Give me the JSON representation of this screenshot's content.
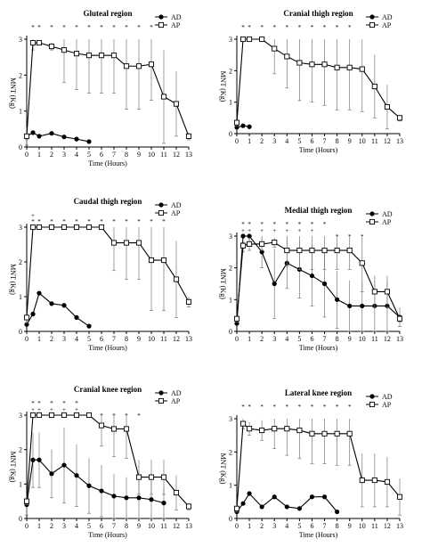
{
  "chart_data": [
    {
      "type": "line",
      "title": "Gluteal region",
      "xlabel": "Time (Hours)",
      "ylabel": "MNT (Kg)",
      "xlim": [
        0,
        13
      ],
      "ylim": [
        0,
        3
      ],
      "xticks": [
        0,
        1,
        2,
        3,
        4,
        5,
        6,
        7,
        8,
        9,
        10,
        11,
        12,
        13
      ],
      "yticks": [
        0,
        1,
        2,
        3
      ],
      "legend_position": "top-right",
      "annotation_rows": [
        {
          "text": "*",
          "x": [
            0.5,
            1,
            2,
            3,
            4,
            5,
            6,
            7,
            8,
            9,
            10
          ]
        }
      ],
      "series": [
        {
          "name": "AD",
          "marker": "filled-circle",
          "x": [
            0,
            0.5,
            1,
            2,
            3,
            4,
            5
          ],
          "y": [
            0.3,
            0.4,
            0.3,
            0.38,
            0.28,
            0.22,
            0.15
          ],
          "err": [
            0.1,
            0,
            0,
            0,
            0,
            0,
            0
          ]
        },
        {
          "name": "AP",
          "marker": "open-square",
          "x": [
            0,
            0.5,
            1,
            2,
            3,
            4,
            5,
            6,
            7,
            8,
            9,
            10,
            11,
            12,
            13
          ],
          "y": [
            0.3,
            2.9,
            2.9,
            2.8,
            2.7,
            2.6,
            2.55,
            2.55,
            2.55,
            2.25,
            2.25,
            2.3,
            1.4,
            1.2,
            0.3
          ],
          "err": [
            0.25,
            0.2,
            0,
            0.1,
            0.9,
            1.0,
            1.05,
            1.05,
            1.05,
            1.2,
            1.2,
            1.0,
            1.3,
            0.9,
            0.1
          ]
        }
      ]
    },
    {
      "type": "line",
      "title": "Cranial thigh region",
      "xlabel": "Time (Hours)",
      "ylabel": "MNT (Kg)",
      "xlim": [
        0,
        13
      ],
      "ylim": [
        0,
        3
      ],
      "xticks": [
        0,
        1,
        2,
        3,
        4,
        5,
        6,
        7,
        8,
        9,
        10,
        11,
        12,
        13
      ],
      "yticks": [
        0,
        1,
        2,
        3
      ],
      "legend_position": "top-right",
      "annotation_rows": [
        {
          "text": "*",
          "x": [
            0.5,
            1,
            2,
            3,
            4,
            5,
            6,
            7,
            8,
            9
          ]
        }
      ],
      "series": [
        {
          "name": "AD",
          "marker": "filled-circle",
          "x": [
            0,
            0.5,
            1
          ],
          "y": [
            0.2,
            0.25,
            0.22
          ],
          "err": [
            0,
            0,
            0
          ]
        },
        {
          "name": "AP",
          "marker": "open-square",
          "x": [
            0,
            0.5,
            1,
            2,
            3,
            4,
            5,
            6,
            7,
            8,
            9,
            10,
            11,
            12,
            13
          ],
          "y": [
            0.35,
            3.0,
            3.0,
            3.0,
            2.7,
            2.45,
            2.25,
            2.2,
            2.2,
            2.1,
            2.1,
            2.05,
            1.5,
            0.85,
            0.5
          ],
          "err": [
            0.1,
            0,
            0,
            0,
            0.8,
            1.0,
            1.2,
            1.2,
            1.3,
            1.35,
            1.35,
            1.35,
            1.0,
            0.7,
            0.1
          ]
        }
      ]
    },
    {
      "type": "line",
      "title": "Caudal thigh region",
      "xlabel": "Time (Hours)",
      "ylabel": "MNT (Kg)",
      "xlim": [
        0,
        13
      ],
      "ylim": [
        0,
        3
      ],
      "xticks": [
        0,
        1,
        2,
        3,
        4,
        5,
        6,
        7,
        8,
        9,
        10,
        11,
        12,
        13
      ],
      "yticks": [
        0,
        1,
        2,
        3
      ],
      "legend_position": "top-right",
      "annotation_rows": [
        {
          "text": "+",
          "x": [
            0.5
          ]
        },
        {
          "text": "*",
          "x": [
            0.5,
            1,
            2,
            3,
            4,
            5,
            6,
            7,
            8,
            9,
            10,
            11
          ]
        }
      ],
      "series": [
        {
          "name": "AD",
          "marker": "filled-circle",
          "x": [
            0,
            0.5,
            1,
            2,
            3,
            4,
            5
          ],
          "y": [
            0.2,
            0.5,
            1.1,
            0.8,
            0.75,
            0.4,
            0.15
          ],
          "err": [
            0,
            0,
            0,
            0,
            0,
            0,
            0
          ]
        },
        {
          "name": "AP",
          "marker": "open-square",
          "x": [
            0,
            0.5,
            1,
            2,
            3,
            4,
            5,
            6,
            7,
            8,
            9,
            10,
            11,
            12,
            13
          ],
          "y": [
            0.4,
            3.0,
            3.0,
            3.0,
            3.0,
            3.0,
            3.0,
            3.0,
            2.55,
            2.55,
            2.55,
            2.05,
            2.05,
            1.5,
            0.85
          ],
          "err": [
            0.15,
            0,
            0,
            0,
            0,
            0,
            0,
            0,
            0.8,
            1.05,
            1.05,
            1.45,
            1.45,
            1.1,
            0.15
          ]
        }
      ]
    },
    {
      "type": "line",
      "title": "Medial thigh region",
      "xlabel": "Time (Hours)",
      "ylabel": "MNT (Kg)",
      "xlim": [
        0,
        13
      ],
      "ylim": [
        0,
        3
      ],
      "xticks": [
        0,
        1,
        2,
        3,
        4,
        5,
        6,
        7,
        8,
        9,
        10,
        11,
        12,
        13
      ],
      "yticks": [
        0,
        1,
        2,
        3
      ],
      "legend_position": "top-right",
      "annotation_rows": [
        {
          "text": "*",
          "x": [
            0.5,
            1,
            2,
            3,
            4,
            5,
            6,
            7
          ]
        },
        {
          "text": "+",
          "x": [
            0.5,
            1,
            2,
            3,
            4,
            5,
            6
          ]
        },
        {
          "text": "*",
          "x": [
            8,
            9,
            10
          ]
        }
      ],
      "series": [
        {
          "name": "AD",
          "marker": "filled-circle",
          "x": [
            0,
            0.5,
            1,
            2,
            3,
            4,
            5,
            6,
            7,
            8,
            9,
            10,
            11,
            12,
            13
          ],
          "y": [
            0.25,
            3.0,
            3.0,
            2.5,
            1.5,
            2.15,
            1.95,
            1.75,
            1.5,
            1.0,
            0.8,
            0.8,
            0.8,
            0.8,
            0.45
          ],
          "err": [
            0,
            0.2,
            0.3,
            0.5,
            1.1,
            0.8,
            0.9,
            0.95,
            1.05,
            0.9,
            0.8,
            0.8,
            0.8,
            0.8,
            0.3
          ]
        },
        {
          "name": "AP",
          "marker": "open-square",
          "x": [
            0,
            0.5,
            1,
            2,
            3,
            4,
            5,
            6,
            7,
            8,
            9,
            10,
            11,
            12,
            13
          ],
          "y": [
            0.4,
            2.7,
            2.75,
            2.75,
            2.8,
            2.55,
            2.55,
            2.55,
            2.55,
            2.55,
            2.55,
            2.15,
            1.25,
            1.25,
            0.4
          ],
          "err": [
            0.1,
            0.2,
            0.2,
            0.2,
            0.15,
            0.5,
            0.6,
            0.6,
            0.6,
            0.6,
            0.6,
            0.9,
            0.5,
            0.5,
            0.1
          ]
        }
      ]
    },
    {
      "type": "line",
      "title": "Cranial knee region",
      "xlabel": "Time (Hours)",
      "ylabel": "MNT (Kg)",
      "xlim": [
        0,
        13
      ],
      "ylim": [
        0,
        3
      ],
      "xticks": [
        0,
        1,
        2,
        3,
        4,
        5,
        6,
        7,
        8,
        9,
        10,
        11,
        12,
        13
      ],
      "yticks": [
        0,
        1,
        2,
        3
      ],
      "legend_position": "top-right",
      "annotation_rows": [
        {
          "text": "*",
          "x": [
            0.5,
            1,
            2,
            3,
            4
          ]
        },
        {
          "text": "+",
          "x": [
            0.5,
            1,
            2,
            3,
            4
          ]
        },
        {
          "text": "*",
          "x": [
            5,
            6,
            7,
            8,
            9
          ]
        }
      ],
      "series": [
        {
          "name": "AD",
          "marker": "filled-circle",
          "x": [
            0,
            0.5,
            1,
            2,
            3,
            4,
            5,
            6,
            7,
            8,
            9,
            10,
            11
          ],
          "y": [
            0.4,
            1.7,
            1.7,
            1.3,
            1.55,
            1.25,
            0.95,
            0.8,
            0.65,
            0.6,
            0.6,
            0.55,
            0.45
          ],
          "err": [
            0.3,
            0.8,
            0.8,
            0.7,
            1.1,
            0.9,
            0.8,
            0.75,
            0.65,
            0.6,
            0.6,
            0.55,
            0.45
          ]
        },
        {
          "name": "AP",
          "marker": "open-square",
          "x": [
            0,
            0.5,
            1,
            2,
            3,
            4,
            5,
            6,
            7,
            8,
            9,
            10,
            11,
            12,
            13
          ],
          "y": [
            0.5,
            3.0,
            3.0,
            3.0,
            3.0,
            3.0,
            3.0,
            2.7,
            2.6,
            2.6,
            1.2,
            1.2,
            1.2,
            0.75,
            0.35
          ],
          "err": [
            0.1,
            0,
            0,
            0,
            0,
            0,
            0,
            0.6,
            0.8,
            0.85,
            0.5,
            0.5,
            0.5,
            0.5,
            0.1
          ]
        }
      ]
    },
    {
      "type": "line",
      "title": "Lateral knee region",
      "xlabel": "Time (Hours)",
      "ylabel": "MNT (Kg)",
      "xlim": [
        0,
        13
      ],
      "ylim": [
        0,
        3
      ],
      "xticks": [
        0,
        1,
        2,
        3,
        4,
        5,
        6,
        7,
        8,
        9,
        10,
        11,
        12,
        13
      ],
      "yticks": [
        0,
        1,
        2,
        3
      ],
      "legend_position": "top-right",
      "annotation_rows": [
        {
          "text": "*",
          "x": [
            0.5,
            1,
            2,
            3,
            4,
            5,
            6,
            7,
            8,
            9
          ]
        }
      ],
      "series": [
        {
          "name": "AD",
          "marker": "filled-circle",
          "x": [
            0,
            0.5,
            1,
            2,
            3,
            4,
            5,
            6,
            7,
            8
          ],
          "y": [
            0.2,
            0.45,
            0.75,
            0.35,
            0.65,
            0.35,
            0.3,
            0.65,
            0.65,
            0.2
          ],
          "err": [
            0,
            0,
            0,
            0,
            0,
            0,
            0,
            0,
            0,
            0
          ]
        },
        {
          "name": "AP",
          "marker": "open-square",
          "x": [
            0,
            0.5,
            1,
            2,
            3,
            4,
            5,
            6,
            7,
            8,
            9,
            10,
            11,
            12,
            13
          ],
          "y": [
            0.3,
            2.85,
            2.7,
            2.65,
            2.7,
            2.7,
            2.65,
            2.55,
            2.55,
            2.55,
            2.55,
            1.15,
            1.15,
            1.1,
            0.65
          ],
          "err": [
            0.1,
            0.15,
            0.2,
            0.3,
            0.6,
            0.8,
            0.85,
            0.9,
            0.9,
            0.95,
            0.95,
            0.8,
            0.8,
            0.75,
            0.55
          ]
        }
      ]
    }
  ]
}
